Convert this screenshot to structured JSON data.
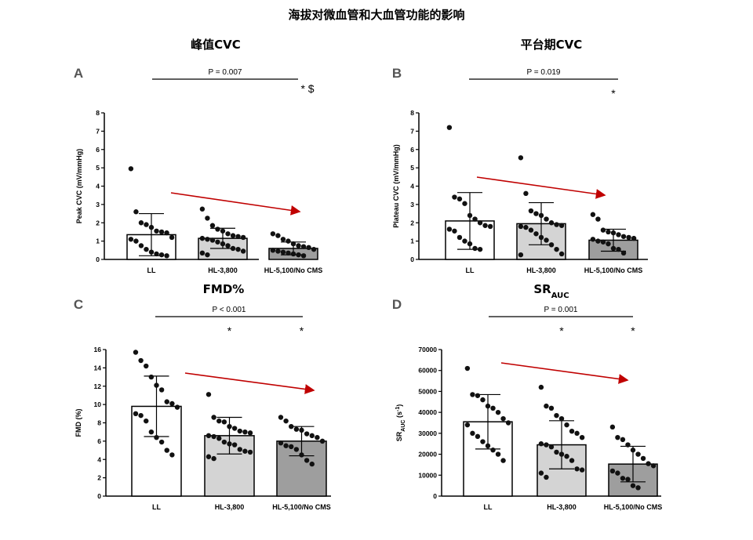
{
  "title": "海拔对微血管和大血管功能的影响",
  "colors": {
    "bar_fills": [
      "#ffffff",
      "#d4d4d4",
      "#9e9e9e"
    ],
    "arrow": "#c00000",
    "dot": "#111111"
  },
  "chart_data": [
    {
      "panel": "A",
      "type": "bar",
      "title": "峰值CVC",
      "ylabel": "Peak CVC (mV/mmHg)",
      "ylim": [
        0,
        8
      ],
      "yticks": [
        0,
        1,
        2,
        3,
        4,
        5,
        6,
        7,
        8
      ],
      "categories": [
        "LL",
        "HL-3,800",
        "HL-5,100/No CMS"
      ],
      "values": [
        1.35,
        1.15,
        0.6
      ],
      "sd": [
        1.15,
        0.55,
        0.35
      ],
      "points": [
        [
          4.95,
          2.6,
          2.0,
          1.9,
          1.75,
          1.55,
          1.5,
          1.45,
          1.2,
          1.1,
          1.0,
          0.75,
          0.55,
          0.4,
          0.3,
          0.25,
          0.2
        ],
        [
          2.75,
          2.25,
          1.85,
          1.65,
          1.55,
          1.4,
          1.3,
          1.25,
          1.2,
          1.15,
          1.1,
          1.05,
          0.95,
          0.85,
          0.75,
          0.6,
          0.55,
          0.45,
          0.35,
          0.25
        ],
        [
          1.4,
          1.3,
          1.1,
          1.0,
          0.85,
          0.75,
          0.7,
          0.65,
          0.55,
          0.5,
          0.45,
          0.4,
          0.35,
          0.3,
          0.25,
          0.2
        ]
      ],
      "pvalue": "P = 0.007",
      "sig": [
        "",
        "",
        "* $"
      ]
    },
    {
      "panel": "B",
      "type": "bar",
      "title": "平台期CVC",
      "ylabel": "Plateau CVC (mV/mmHg)",
      "ylim": [
        0,
        8
      ],
      "yticks": [
        0,
        1,
        2,
        3,
        4,
        5,
        6,
        7,
        8
      ],
      "categories": [
        "LL",
        "HL-3,800",
        "HL-5,100/No CMS"
      ],
      "values": [
        2.1,
        1.95,
        1.05
      ],
      "sd": [
        1.55,
        1.15,
        0.6
      ],
      "points": [
        [
          7.2,
          3.4,
          3.3,
          3.05,
          2.4,
          2.2,
          2.0,
          1.85,
          1.8,
          1.65,
          1.55,
          1.2,
          1.0,
          0.85,
          0.6,
          0.55
        ],
        [
          5.55,
          3.6,
          2.65,
          2.5,
          2.4,
          2.2,
          2.0,
          1.9,
          1.85,
          1.8,
          1.75,
          1.6,
          1.4,
          1.2,
          1.05,
          0.8,
          0.55,
          0.3,
          0.25
        ],
        [
          2.45,
          2.2,
          1.6,
          1.5,
          1.45,
          1.35,
          1.25,
          1.2,
          1.15,
          1.1,
          1.0,
          0.95,
          0.85,
          0.6,
          0.55,
          0.35
        ]
      ],
      "pvalue": "P = 0.019",
      "sig": [
        "",
        "",
        "*"
      ]
    },
    {
      "panel": "C",
      "type": "bar",
      "title": "FMD%",
      "ylabel": "FMD (%)",
      "ylim": [
        0,
        16
      ],
      "yticks": [
        0,
        2,
        4,
        6,
        8,
        10,
        12,
        14,
        16
      ],
      "categories": [
        "LL",
        "HL-3,800",
        "HL-5,100/No CMS"
      ],
      "values": [
        9.8,
        6.6,
        6.0
      ],
      "sd": [
        3.3,
        2.0,
        1.6
      ],
      "points": [
        [
          15.7,
          14.8,
          14.2,
          13.0,
          12.1,
          11.6,
          10.3,
          10.1,
          9.7,
          9.0,
          8.8,
          8.2,
          7.0,
          6.4,
          5.9,
          5.0,
          4.5
        ],
        [
          11.1,
          8.6,
          8.2,
          8.1,
          7.6,
          7.4,
          7.1,
          7.0,
          6.9,
          6.6,
          6.5,
          6.3,
          5.9,
          5.7,
          5.6,
          5.1,
          4.9,
          4.8,
          4.3,
          4.1
        ],
        [
          8.6,
          8.2,
          7.6,
          7.3,
          7.2,
          6.8,
          6.6,
          6.4,
          6.0,
          5.8,
          5.5,
          5.4,
          5.1,
          4.5,
          3.9,
          3.5
        ]
      ],
      "pvalue": "P < 0.001",
      "sig": [
        "",
        "*",
        "*"
      ]
    },
    {
      "panel": "D",
      "type": "bar",
      "title": "SR",
      "title_sub": "AUC",
      "ylabel": "SR",
      "ylabel_sub": "AUC",
      "ylabel_unit": " (s",
      "ylabel_exp": "-1",
      "ylabel_close": ")",
      "ylim": [
        0,
        70000
      ],
      "yticks": [
        0,
        10000,
        20000,
        30000,
        40000,
        50000,
        60000,
        70000
      ],
      "categories": [
        "LL",
        "HL-3,800",
        "HL-5,100/No CMS"
      ],
      "values": [
        35500,
        24500,
        15300
      ],
      "sd": [
        13000,
        11500,
        8500
      ],
      "points": [
        [
          61000,
          48500,
          48000,
          46000,
          43000,
          42000,
          40000,
          37000,
          35000,
          34000,
          30000,
          28500,
          26000,
          24000,
          22000,
          20000,
          17000
        ],
        [
          52000,
          43000,
          42000,
          38500,
          37000,
          34000,
          31000,
          30000,
          28000,
          25000,
          24500,
          23500,
          21000,
          20000,
          19000,
          17000,
          13000,
          12500,
          11000,
          9000
        ],
        [
          33000,
          28000,
          27000,
          24500,
          22000,
          20000,
          18000,
          15500,
          14500,
          12000,
          11000,
          8500,
          8000,
          5000,
          4000
        ]
      ],
      "pvalue": "P = 0.001",
      "sig": [
        "",
        "*",
        "*"
      ]
    }
  ]
}
